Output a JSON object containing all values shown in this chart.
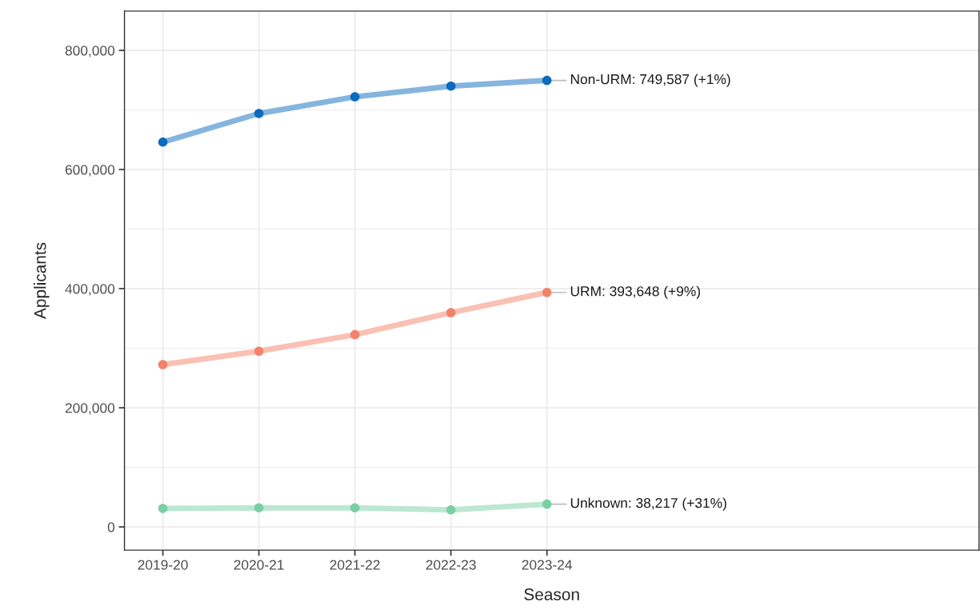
{
  "chart_data": {
    "type": "line",
    "xlabel": "Season",
    "ylabel": "Applicants",
    "categories": [
      "2019-20",
      "2020-21",
      "2021-22",
      "2022-23",
      "2023-24"
    ],
    "series": [
      {
        "color": "#0b6bbd",
        "values": [
          646000,
          694000,
          722000,
          740000,
          749587
        ]
      },
      {
        "color": "#f4826a",
        "values": [
          272500,
          295000,
          322700,
          359700,
          393648
        ]
      },
      {
        "color": "#7acfa5",
        "values": [
          31000,
          32000,
          32000,
          28600,
          38217
        ]
      }
    ],
    "annotations": [
      {
        "text": "Non-URM: 749,587 (+1%)",
        "x": "2023-24",
        "y": 749587
      },
      {
        "text": "URM: 393,648 (+9%)",
        "x": "2023-24",
        "y": 393648
      },
      {
        "text": "Unknown: 38,217 (+31%)",
        "x": "2023-24",
        "y": 38217
      }
    ],
    "ylim": [
      -39000,
      866000
    ],
    "yticks": [
      {
        "value": 0,
        "label": "0"
      },
      {
        "value": 200000,
        "label": "200,000"
      },
      {
        "value": 400000,
        "label": "400,000"
      },
      {
        "value": 600000,
        "label": "600,000"
      },
      {
        "value": 800000,
        "label": "800,000"
      }
    ],
    "grid": true,
    "marker": "circle",
    "line_style": "solid"
  }
}
